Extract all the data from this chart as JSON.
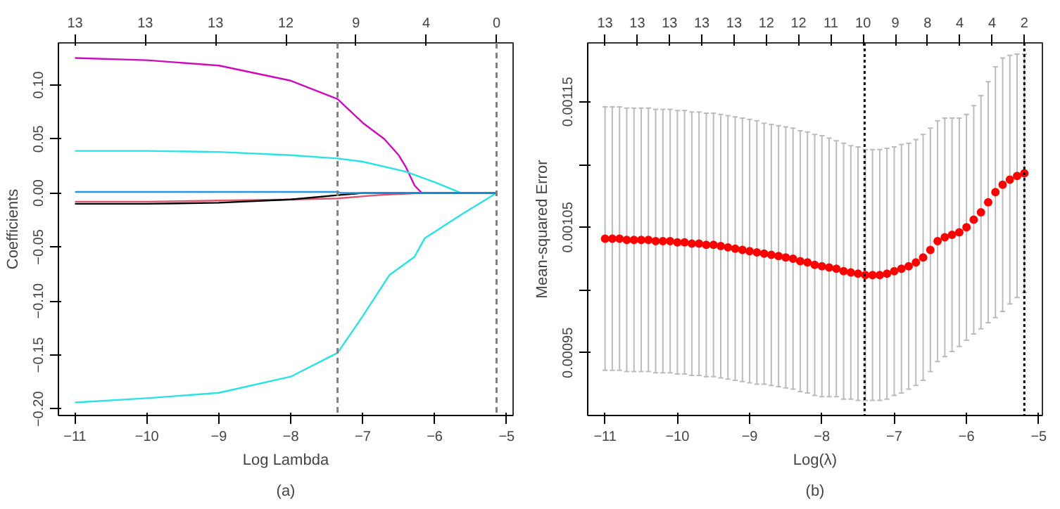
{
  "chart_data": [
    {
      "type": "line",
      "xlabel": "Log Lambda",
      "ylabel": "Coefficients",
      "annotations": [
        "(a)",
        "13",
        "13",
        "13",
        "12",
        "9",
        "4",
        "0"
      ],
      "xlim": [
        -11.23,
        -4.91
      ],
      "ylim": [
        -0.206,
        0.139
      ],
      "xticks": [
        {
          "value": -11,
          "label": "−11"
        },
        {
          "value": -10,
          "label": "−10"
        },
        {
          "value": -9,
          "label": "−9"
        },
        {
          "value": -8,
          "label": "−8"
        },
        {
          "value": -7,
          "label": "−7"
        },
        {
          "value": -6,
          "label": "−6"
        },
        {
          "value": -5,
          "label": "−5"
        }
      ],
      "yticks": [
        {
          "value": -0.2,
          "label": "−0.20"
        },
        {
          "value": -0.15,
          "label": "−0.15"
        },
        {
          "value": -0.1,
          "label": "−0.10"
        },
        {
          "value": -0.05,
          "label": "−0.05"
        },
        {
          "value": 0,
          "label": "0.00"
        },
        {
          "value": 0.05,
          "label": "0.05"
        },
        {
          "value": 0.1,
          "label": "0.10"
        }
      ],
      "grid": false,
      "line_style": "solid",
      "ref_lines": [
        {
          "axis": "x",
          "value": -7.35,
          "color": "#808080",
          "line_style": "dashed"
        },
        {
          "axis": "x",
          "value": -5.14,
          "color": "#808080",
          "line_style": "dashed"
        }
      ],
      "series": [
        {
          "color": "#cd0bbc",
          "x": [
            -11,
            -10,
            -9,
            -8,
            -7.35,
            -7,
            -6.7,
            -6.5,
            -6.4,
            -6.28,
            -6.18,
            -5.14
          ],
          "values": [
            0.125,
            0.123,
            0.118,
            0.104,
            0.087,
            0.065,
            0.05,
            0.035,
            0.024,
            0.007,
            0,
            0
          ]
        },
        {
          "color": "#28e2e5",
          "x": [
            -11,
            -10,
            -9,
            -8,
            -7.35,
            -7,
            -6.41,
            -6,
            -5.63,
            -5.14
          ],
          "values": [
            0.039,
            0.039,
            0.038,
            0.035,
            0.032,
            0.029,
            0.02,
            0.01,
            0,
            0
          ]
        },
        {
          "color": "#28e2e5",
          "x": [
            -11,
            -10,
            -9,
            -8,
            -7.35,
            -7,
            -6.63,
            -6.28,
            -6.14,
            -5.63,
            -5.14
          ],
          "values": [
            -0.194,
            -0.19,
            -0.185,
            -0.17,
            -0.148,
            -0.114,
            -0.076,
            -0.059,
            -0.042,
            -0.02,
            0
          ]
        },
        {
          "color": "#df536b",
          "x": [
            -11,
            -10,
            -9,
            -8,
            -7.35,
            -6.8,
            -6.2,
            -5.14
          ],
          "values": [
            -0.008,
            -0.008,
            -0.007,
            -0.006,
            -0.005,
            -0.002,
            0,
            0
          ]
        },
        {
          "color": "#000000",
          "x": [
            -11,
            -10,
            -9,
            -8,
            -7.35,
            -7,
            -5.14
          ],
          "values": [
            -0.01,
            -0.01,
            -0.009,
            -0.006,
            -0.002,
            0,
            0
          ]
        },
        {
          "color": "#2297e6",
          "x": [
            -11,
            -7.35,
            -7.3,
            -5.14
          ],
          "values": [
            0.001,
            0.001,
            0,
            0
          ]
        }
      ]
    },
    {
      "type": "scatter",
      "xlabel": "Log(λ)",
      "ylabel": "Mean-squared Error",
      "annotations": [
        "(b)",
        "13",
        "13",
        "13",
        "13",
        "13",
        "12",
        "12",
        "11",
        "10",
        "9",
        "8",
        "4",
        "4",
        "2"
      ],
      "xlim": [
        -11.24,
        -4.95
      ],
      "ylim": [
        0.0009,
        0.001197
      ],
      "xticks": [
        {
          "value": -11,
          "label": "−11"
        },
        {
          "value": -10,
          "label": "−10"
        },
        {
          "value": -9,
          "label": "−9"
        },
        {
          "value": -8,
          "label": "−8"
        },
        {
          "value": -7,
          "label": "−7"
        },
        {
          "value": -6,
          "label": "−6"
        },
        {
          "value": -5,
          "label": "−5"
        }
      ],
      "yticks": [
        {
          "value": 0.00095,
          "label": "0.00095"
        },
        {
          "value": 0.001,
          "label": null
        },
        {
          "value": 0.00105,
          "label": "0.00105"
        },
        {
          "value": 0.0011,
          "label": null
        },
        {
          "value": 0.00115,
          "label": "0.00115"
        }
      ],
      "grid": false,
      "marker": "circle",
      "ref_lines": [
        {
          "axis": "x",
          "value": -7.41,
          "color": "#000000",
          "line_style": "dotted"
        },
        {
          "axis": "x",
          "value": -5.2,
          "color": "#000000",
          "line_style": "dotted"
        }
      ],
      "series": [
        {
          "color": "#ff0000",
          "x": [
            -11,
            -10.9,
            -10.8,
            -10.7,
            -10.6,
            -10.5,
            -10.4,
            -10.3,
            -10.2,
            -10.1,
            -10,
            -9.9,
            -9.8,
            -9.7,
            -9.6,
            -9.5,
            -9.4,
            -9.3,
            -9.2,
            -9.1,
            -9,
            -8.9,
            -8.8,
            -8.7,
            -8.6,
            -8.5,
            -8.4,
            -8.3,
            -8.2,
            -8.1,
            -8,
            -7.9,
            -7.8,
            -7.7,
            -7.6,
            -7.5,
            -7.4,
            -7.3,
            -7.2,
            -7.1,
            -7,
            -6.9,
            -6.8,
            -6.7,
            -6.6,
            -6.5,
            -6.4,
            -6.3,
            -6.2,
            -6.1,
            -6,
            -5.9,
            -5.8,
            -5.7,
            -5.6,
            -5.5,
            -5.4,
            -5.3,
            -5.2
          ],
          "values": [
            0.001041,
            0.001041,
            0.001041,
            0.00104,
            0.00104,
            0.00104,
            0.00104,
            0.001039,
            0.001039,
            0.001039,
            0.001038,
            0.001038,
            0.001037,
            0.001037,
            0.001036,
            0.001036,
            0.001035,
            0.001034,
            0.001033,
            0.001032,
            0.001031,
            0.00103,
            0.001029,
            0.001028,
            0.001027,
            0.001026,
            0.001025,
            0.001023,
            0.001022,
            0.00102,
            0.001019,
            0.001018,
            0.001017,
            0.001015,
            0.001014,
            0.001013,
            0.001012,
            0.001012,
            0.001012,
            0.001013,
            0.001015,
            0.001017,
            0.001019,
            0.001022,
            0.001026,
            0.001032,
            0.001039,
            0.001042,
            0.001044,
            0.001046,
            0.00105,
            0.001056,
            0.001062,
            0.00107,
            0.001078,
            0.001084,
            0.001088,
            0.001091,
            0.001093
          ],
          "errors": [
            0.000105,
            0.000105,
            0.000105,
            0.000105,
            0.000105,
            0.000105,
            0.000105,
            0.000105,
            0.000105,
            0.000105,
            0.000105,
            0.000105,
            0.000105,
            0.000105,
            0.000105,
            0.000105,
            0.000105,
            0.000105,
            0.000105,
            0.000105,
            0.000105,
            0.000105,
            0.000104,
            0.000104,
            0.000104,
            0.000104,
            0.000104,
            0.000104,
            0.000104,
            0.000104,
            0.000104,
            0.000103,
            0.000102,
            0.000102,
            0.000101,
            0.000101,
            0.0001,
            0.0001,
            0.0001,
            0.0001,
            9.9e-05,
            9.9e-05,
            9.8e-05,
            9.8e-05,
            9.8e-05,
            9.7e-05,
            9.6e-05,
            9.5e-05,
            9.3e-05,
            9.1e-05,
            9e-05,
            9.1e-05,
            9.3e-05,
            9.6e-05,
            0.0001,
            0.000101,
            9.9e-05,
            9.7e-05,
            9.5e-05
          ]
        }
      ]
    }
  ]
}
